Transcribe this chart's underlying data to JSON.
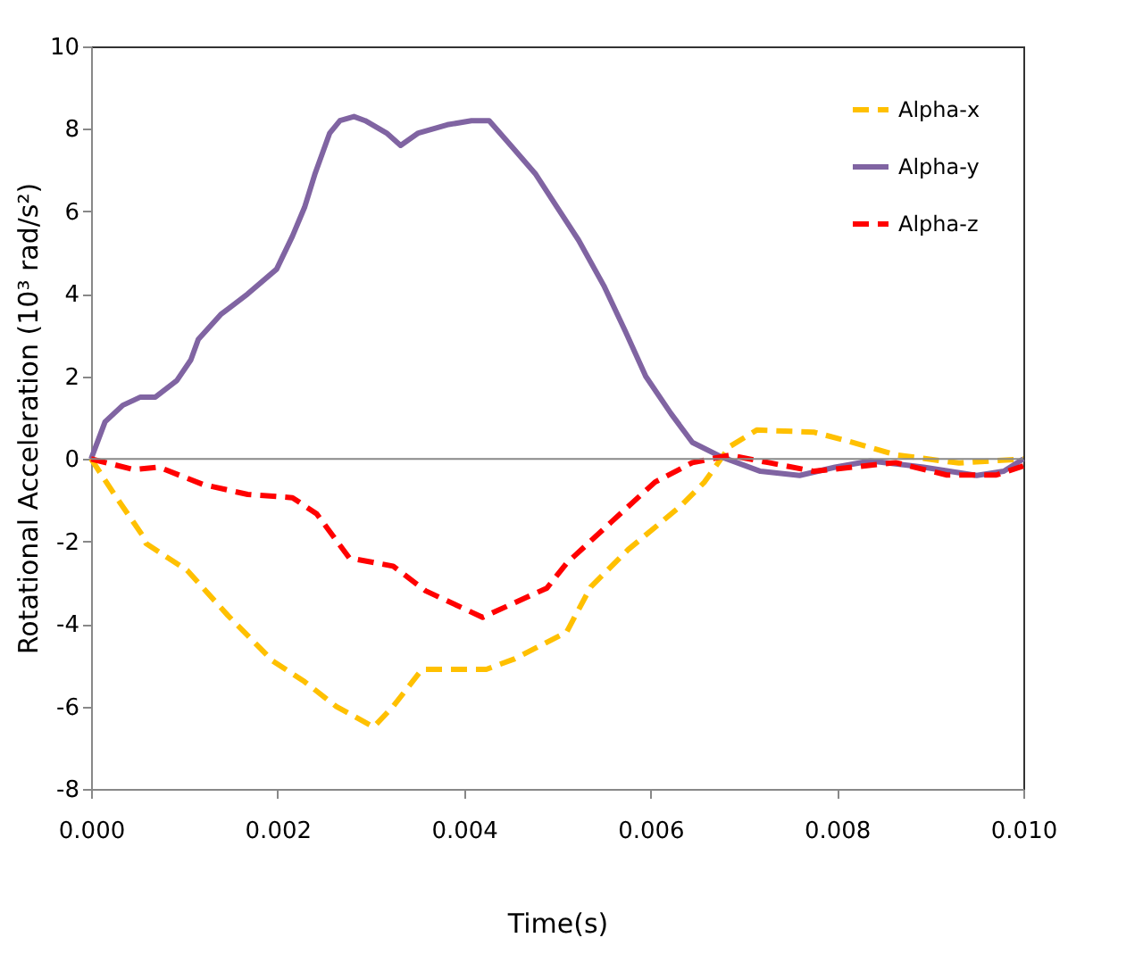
{
  "chart_data": {
    "type": "line",
    "xlabel": "Time(s)",
    "ylabel": "Rotational Acceleration (10³ rad/s²)",
    "xlim": [
      0,
      0.01
    ],
    "xticks": [
      {
        "value": 0,
        "label": "0.000"
      },
      {
        "value": 0.002,
        "label": "0.002"
      },
      {
        "value": 0.004,
        "label": "0.004"
      },
      {
        "value": 0.006,
        "label": "0.006"
      },
      {
        "value": 0.008,
        "label": "0.008"
      },
      {
        "value": 0.01,
        "label": "0.010"
      }
    ],
    "ylim": [
      -8,
      10
    ],
    "yticks": [
      -8,
      -6,
      -4,
      -2,
      0,
      2,
      4,
      6,
      8,
      10
    ],
    "grid": false,
    "ref_lines": [
      {
        "axis": "y",
        "value": 0,
        "color": "#888888"
      }
    ],
    "legend": "top right",
    "marker": "none",
    "series": [
      {
        "name": "Alpha-x",
        "color": "#ffc000",
        "line_style": "dashed",
        "x": [
          0,
          0.00025,
          0.00055,
          0.00059,
          0.00103,
          0.00147,
          0.00195,
          0.00229,
          0.00263,
          0.00303,
          0.00324,
          0.00355,
          0.00424,
          0.00454,
          0.0051,
          0.00536,
          0.00576,
          0.00632,
          0.00658,
          0.00685,
          0.00714,
          0.00775,
          0.00809,
          0.00863,
          0.00931,
          0.01
        ],
        "values": [
          0,
          -0.86,
          -1.85,
          -2.05,
          -2.7,
          -3.8,
          -4.9,
          -5.4,
          -6.0,
          -6.5,
          -6.0,
          -5.1,
          -5.1,
          -4.85,
          -4.2,
          -3.1,
          -2.2,
          -1.15,
          -0.56,
          0.3,
          0.7,
          0.65,
          0.45,
          0.1,
          -0.1,
          0
        ]
      },
      {
        "name": "Alpha-y",
        "color": "#8064a2",
        "line_style": "solid",
        "x": [
          0,
          0.00015,
          0.00034,
          0.00053,
          0.00069,
          0.00092,
          0.00107,
          0.00115,
          0.00139,
          0.00168,
          0.00199,
          0.00216,
          0.00229,
          0.0024,
          0.00256,
          0.00267,
          0.00282,
          0.00294,
          0.00317,
          0.00332,
          0.00351,
          0.00382,
          0.00408,
          0.00427,
          0.00454,
          0.00477,
          0.005,
          0.00523,
          0.0055,
          0.00573,
          0.00595,
          0.00622,
          0.00645,
          0.00676,
          0.00718,
          0.0076,
          0.00798,
          0.00836,
          0.00893,
          0.0095,
          0.00979,
          0.01
        ],
        "values": [
          0,
          0.9,
          1.3,
          1.5,
          1.5,
          1.9,
          2.4,
          2.9,
          3.5,
          4.0,
          4.6,
          5.4,
          6.1,
          6.9,
          7.9,
          8.2,
          8.3,
          8.2,
          7.9,
          7.6,
          7.9,
          8.1,
          8.2,
          8.2,
          7.5,
          6.9,
          6.1,
          5.3,
          4.2,
          3.1,
          2.0,
          1.1,
          0.4,
          0.05,
          -0.3,
          -0.4,
          -0.2,
          -0.05,
          -0.2,
          -0.4,
          -0.3,
          0
        ]
      },
      {
        "name": "Alpha-z",
        "color": "#ff0000",
        "line_style": "dashed",
        "x": [
          0,
          0.00046,
          0.00073,
          0.0012,
          0.00168,
          0.00216,
          0.00242,
          0.00277,
          0.00324,
          0.00359,
          0.0042,
          0.00489,
          0.0051,
          0.00557,
          0.00605,
          0.00645,
          0.00685,
          0.00727,
          0.00775,
          0.00863,
          0.00918,
          0.00971,
          0.01
        ],
        "values": [
          0,
          -0.26,
          -0.2,
          -0.62,
          -0.86,
          -0.94,
          -1.33,
          -2.4,
          -2.6,
          -3.2,
          -3.84,
          -3.13,
          -2.53,
          -1.55,
          -0.56,
          -0.09,
          0.09,
          -0.09,
          -0.3,
          -0.09,
          -0.39,
          -0.39,
          -0.17
        ]
      }
    ]
  }
}
